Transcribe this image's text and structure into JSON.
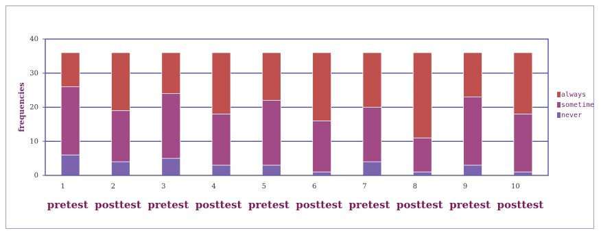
{
  "chart_data": {
    "type": "bar",
    "stacked": true,
    "ylabel": "frequencies",
    "ylim": [
      0,
      40
    ],
    "yticks": [
      0,
      10,
      20,
      30,
      40
    ],
    "categories": [
      "1",
      "2",
      "3",
      "4",
      "5",
      "6",
      "7",
      "8",
      "9",
      "10"
    ],
    "group_labels": [
      "pretest",
      "posttest",
      "pretest",
      "posttest",
      "pretest",
      "posttest",
      "pretest",
      "posttest",
      "pretest",
      "posttest"
    ],
    "series": [
      {
        "name": "never",
        "color": "#7a64ae",
        "values": [
          6,
          4,
          5,
          3,
          3,
          1,
          4,
          1,
          3,
          1
        ]
      },
      {
        "name": "sometimes",
        "color": "#a24a86",
        "values": [
          20,
          15,
          19,
          15,
          19,
          15,
          16,
          10,
          20,
          17
        ]
      },
      {
        "name": "always",
        "color": "#c0504d",
        "values": [
          10,
          17,
          12,
          18,
          14,
          20,
          16,
          25,
          13,
          18
        ]
      }
    ],
    "legend": {
      "position": "right",
      "entries": [
        "always",
        "sometimes",
        "never"
      ]
    },
    "grid": true,
    "colors": {
      "plot_background": "#ffffff",
      "plot_border": "#5a5aa8",
      "gridline": "#3c3c8c",
      "frame_border": "#9e9ed6"
    }
  }
}
